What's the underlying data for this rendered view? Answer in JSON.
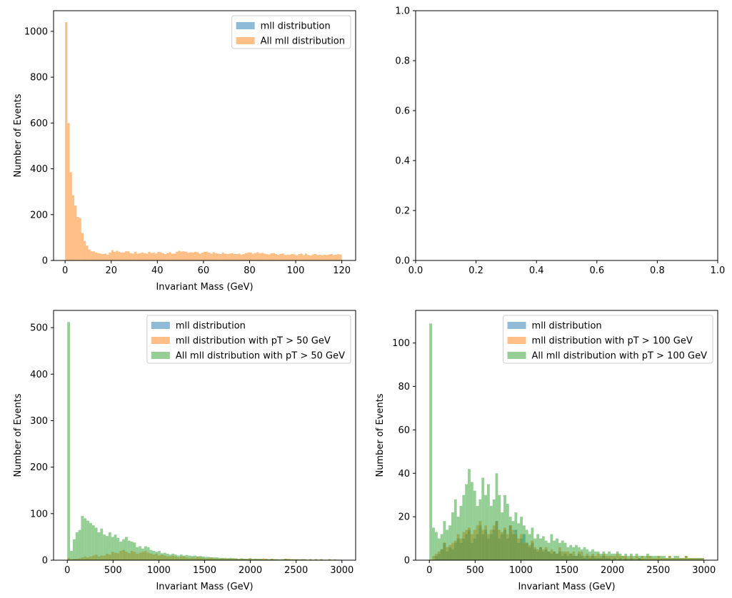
{
  "colors": {
    "blue": "#1f77b4",
    "orange": "#ff7f0e",
    "green": "#2ca02c",
    "bar_alpha": 0.5,
    "axis": "#000000",
    "legend_edge": "#cccccc"
  },
  "chart_data": [
    {
      "id": "top-left",
      "type": "bar",
      "xlabel": "Invariant Mass (GeV)",
      "ylabel": "Number of Events",
      "xlim": [
        -5,
        126
      ],
      "ylim": [
        0,
        1090
      ],
      "xticks": [
        0,
        20,
        40,
        60,
        80,
        100,
        120
      ],
      "yticks": [
        0,
        200,
        400,
        600,
        800,
        1000
      ],
      "legend": {
        "placement": "top-right",
        "entries": [
          "mll distribution",
          "All mll distribution"
        ]
      },
      "series": [
        {
          "name": "mll distribution",
          "color": "blue",
          "bin_start": 0,
          "bin_width": 1,
          "values": []
        },
        {
          "name": "All mll distribution",
          "color": "orange",
          "bin_start": 0,
          "bin_width": 1,
          "values": [
            1040,
            600,
            385,
            285,
            240,
            190,
            185,
            120,
            85,
            65,
            48,
            40,
            40,
            35,
            32,
            30,
            28,
            30,
            25,
            35,
            45,
            38,
            42,
            38,
            35,
            35,
            40,
            40,
            32,
            30,
            38,
            30,
            32,
            35,
            32,
            30,
            38,
            33,
            34,
            30,
            38,
            36,
            32,
            28,
            32,
            36,
            30,
            30,
            38,
            42,
            39,
            40,
            38,
            34,
            36,
            35,
            38,
            36,
            30,
            34,
            38,
            38,
            34,
            30,
            36,
            32,
            30,
            28,
            34,
            30,
            28,
            30,
            32,
            28,
            28,
            30,
            26,
            28,
            32,
            35,
            35,
            30,
            32,
            36,
            31,
            33,
            30,
            28,
            26,
            31,
            32,
            28,
            25,
            28,
            30,
            24,
            25,
            25,
            28,
            26,
            22,
            28,
            30,
            24,
            30,
            24,
            22,
            26,
            28,
            24,
            25,
            23,
            25,
            24,
            26,
            28,
            24,
            25,
            28,
            26
          ]
        }
      ]
    },
    {
      "id": "top-right",
      "type": "bar",
      "xlabel": "",
      "ylabel": "",
      "xlim": [
        0,
        1
      ],
      "ylim": [
        0,
        1
      ],
      "xticks": [
        0.0,
        0.2,
        0.4,
        0.6,
        0.8,
        1.0
      ],
      "yticks": [
        0.0,
        0.2,
        0.4,
        0.6,
        0.8,
        1.0
      ],
      "xticklabels": [
        "0.0",
        "0.2",
        "0.4",
        "0.6",
        "0.8",
        "1.0"
      ],
      "yticklabels": [
        "0.0",
        "0.2",
        "0.4",
        "0.6",
        "0.8",
        "1.0"
      ],
      "legend": null,
      "series": []
    },
    {
      "id": "bottom-left",
      "type": "bar",
      "xlabel": "Invariant Mass (GeV)",
      "ylabel": "Number of Events",
      "xlim": [
        -150,
        3150
      ],
      "ylim": [
        0,
        537
      ],
      "xticks": [
        0,
        500,
        1000,
        1500,
        2000,
        2500,
        3000
      ],
      "yticks": [
        0,
        100,
        200,
        300,
        400,
        500
      ],
      "legend": {
        "placement": "top-right",
        "entries": [
          "mll distribution",
          "mll distribution with pT > 50 GeV",
          "All mll distribution with pT > 50 GeV"
        ]
      },
      "series": [
        {
          "name": "mll distribution",
          "color": "blue",
          "bin_start": 0,
          "bin_width": 30,
          "values": []
        },
        {
          "name": "mll distribution with pT > 50 GeV",
          "color": "orange",
          "bin_start": 0,
          "bin_width": 30,
          "values": [
            5,
            2,
            3,
            3,
            4,
            6,
            8,
            6,
            8,
            10,
            12,
            8,
            10,
            10,
            14,
            12,
            18,
            16,
            15,
            20,
            22,
            18,
            15,
            20,
            18,
            14,
            16,
            18,
            20,
            16,
            14,
            12,
            14,
            10,
            12,
            10,
            8,
            8,
            10,
            8,
            6,
            8,
            8,
            6,
            5,
            6,
            5,
            8,
            6,
            5,
            4,
            5,
            6,
            4,
            4,
            3,
            4,
            3,
            4,
            3,
            4,
            3,
            2,
            3,
            3,
            2,
            4,
            2,
            3,
            2,
            2,
            4,
            2,
            2,
            3,
            2,
            2,
            1,
            2,
            3,
            3,
            2,
            2,
            2,
            1,
            2,
            2,
            1,
            2,
            1,
            2,
            1,
            2,
            1,
            1,
            2,
            1,
            2,
            1,
            1
          ]
        },
        {
          "name": "All mll distribution with pT > 50 GeV",
          "color": "green",
          "bin_start": 0,
          "bin_width": 30,
          "values": [
            512,
            20,
            45,
            60,
            65,
            95,
            90,
            85,
            80,
            75,
            70,
            60,
            68,
            55,
            52,
            60,
            50,
            55,
            48,
            40,
            45,
            50,
            42,
            40,
            38,
            28,
            30,
            25,
            30,
            28,
            22,
            20,
            18,
            20,
            15,
            16,
            14,
            12,
            14,
            12,
            10,
            12,
            10,
            11,
            10,
            9,
            10,
            8,
            9,
            8,
            7,
            7,
            6,
            6,
            6,
            5,
            5,
            5,
            4,
            5,
            4,
            4,
            3,
            4,
            3,
            3,
            4,
            3,
            3,
            3,
            3,
            2,
            3,
            2,
            3,
            2,
            2,
            2,
            2,
            3,
            2,
            2,
            2,
            2,
            2,
            2,
            2,
            1,
            2,
            1,
            2,
            1,
            2,
            1,
            1,
            2,
            1,
            1,
            1,
            1
          ]
        }
      ]
    },
    {
      "id": "bottom-right",
      "type": "bar",
      "xlabel": "Invariant Mass (GeV)",
      "ylabel": "Number of Events",
      "xlim": [
        -150,
        3150
      ],
      "ylim": [
        0,
        115
      ],
      "xticks": [
        0,
        500,
        1000,
        1500,
        2000,
        2500,
        3000
      ],
      "yticks": [
        0,
        20,
        40,
        60,
        80,
        100
      ],
      "legend": {
        "placement": "top-right",
        "entries": [
          "mll distribution",
          "mll distribution with pT > 100 GeV",
          "All mll distribution with pT > 100 GeV"
        ]
      },
      "series": [
        {
          "name": "mll distribution",
          "color": "blue",
          "bin_start": 0,
          "bin_width": 30,
          "values": [
            0,
            0,
            2,
            3,
            5,
            8,
            4,
            6,
            5,
            8,
            10,
            8,
            10,
            12,
            14,
            8,
            10,
            12,
            16,
            12,
            14,
            10,
            12,
            14,
            18,
            10,
            12,
            14,
            10,
            16,
            12,
            14,
            8,
            10,
            12,
            8,
            6,
            8,
            5,
            4,
            6,
            4,
            5,
            4,
            3,
            4,
            3,
            4,
            2,
            3,
            2,
            3,
            2,
            2,
            3,
            2,
            1,
            2,
            1,
            2,
            1,
            1,
            1,
            2,
            1,
            1,
            0,
            1,
            0,
            1,
            0,
            1,
            0,
            1,
            0,
            0,
            1,
            0,
            0,
            0,
            0,
            0,
            0,
            0,
            0,
            0,
            0,
            0,
            0,
            0,
            0,
            0,
            0,
            0,
            0,
            0,
            0,
            0,
            0,
            0
          ]
        },
        {
          "name": "mll distribution with pT > 100 GeV",
          "color": "orange",
          "bin_start": 0,
          "bin_width": 30,
          "values": [
            0,
            2,
            3,
            4,
            5,
            8,
            6,
            7,
            8,
            9,
            12,
            10,
            13,
            14,
            15,
            12,
            14,
            16,
            18,
            14,
            16,
            12,
            14,
            16,
            18,
            14,
            13,
            15,
            12,
            16,
            14,
            12,
            10,
            12,
            8,
            8,
            7,
            9,
            6,
            5,
            6,
            5,
            6,
            4,
            5,
            4,
            3,
            6,
            4,
            4,
            4,
            3,
            4,
            2,
            4,
            4,
            2,
            3,
            2,
            3,
            2,
            3,
            2,
            3,
            2,
            2,
            2,
            2,
            3,
            2,
            2,
            2,
            1,
            2,
            1,
            2,
            1,
            2,
            1,
            2,
            2,
            1,
            1,
            2,
            1,
            1,
            1,
            2,
            1,
            1,
            1,
            1,
            1,
            2,
            1,
            1,
            1,
            1,
            1,
            1
          ]
        },
        {
          "name": "All mll distribution with pT > 100 GeV",
          "color": "green",
          "bin_start": 0,
          "bin_width": 30,
          "values": [
            109,
            15,
            13,
            10,
            12,
            18,
            14,
            16,
            22,
            28,
            20,
            25,
            30,
            35,
            42,
            36,
            32,
            25,
            28,
            38,
            30,
            35,
            25,
            28,
            40,
            30,
            22,
            30,
            26,
            20,
            18,
            22,
            17,
            20,
            16,
            14,
            12,
            15,
            10,
            12,
            10,
            11,
            9,
            8,
            12,
            9,
            10,
            8,
            9,
            8,
            6,
            7,
            6,
            7,
            6,
            5,
            6,
            5,
            4,
            5,
            4,
            4,
            3,
            4,
            3,
            4,
            3,
            3,
            4,
            3,
            2,
            3,
            2,
            3,
            2,
            3,
            2,
            2,
            2,
            3,
            2,
            2,
            2,
            2,
            2,
            2,
            1,
            2,
            1,
            2,
            2,
            1,
            1,
            2,
            1,
            1,
            1,
            1,
            1,
            1
          ]
        }
      ]
    }
  ]
}
